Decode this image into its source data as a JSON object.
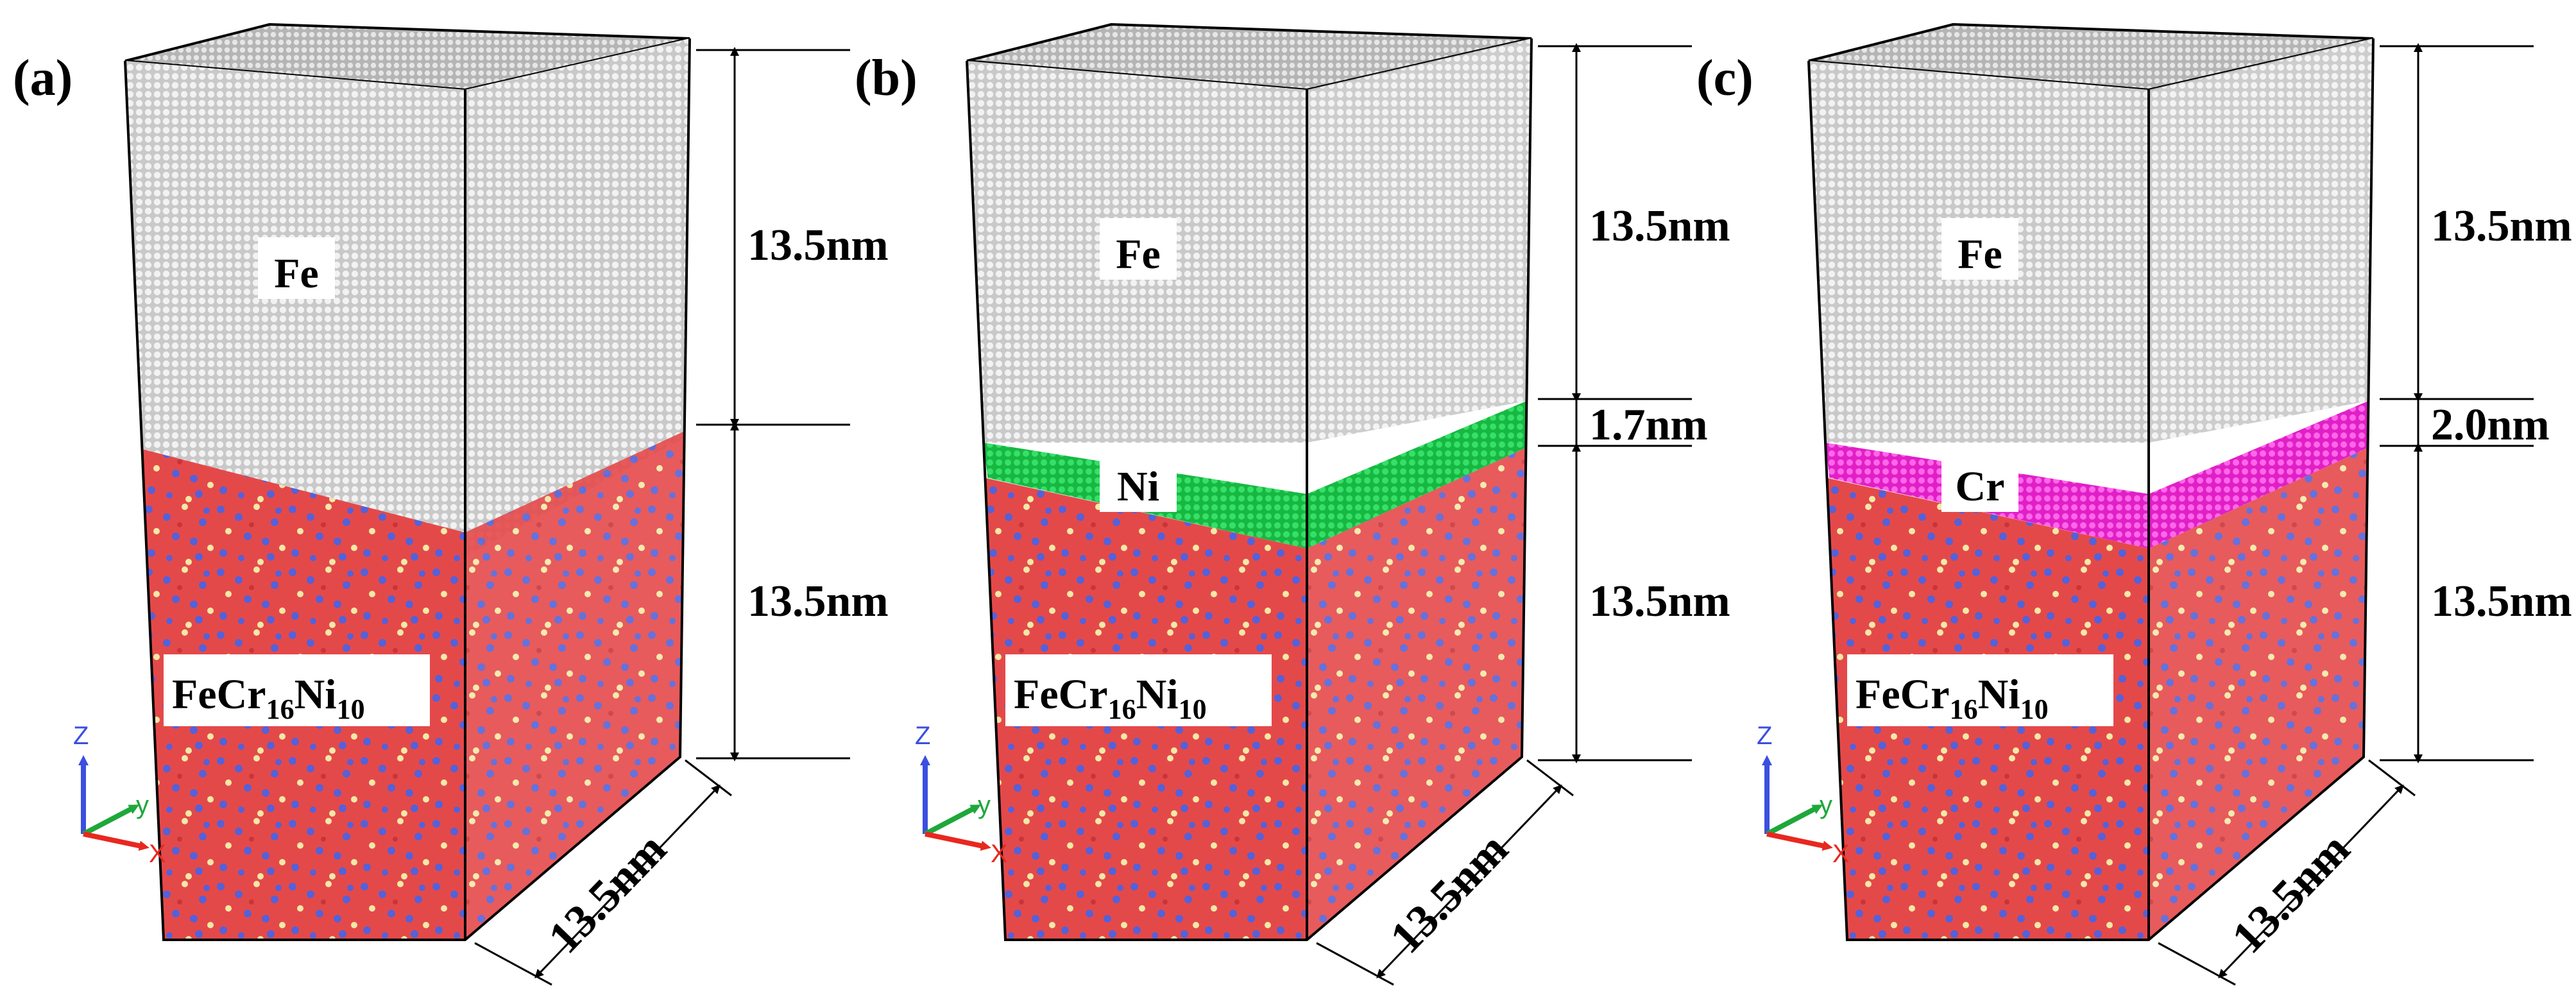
{
  "panels": [
    {
      "letter": "(a)",
      "layers": [
        {
          "name": "Fe",
          "type": "Fe",
          "thickness_label": "13.5nm"
        },
        {
          "name": "FeCr16Ni10",
          "type": "FeCrNi",
          "thickness_label": "13.5nm"
        }
      ],
      "alloy": {
        "base": "FeCr",
        "sub1": "16",
        "mid": "Ni",
        "sub2": "10"
      },
      "width_label": "13.5nm"
    },
    {
      "letter": "(b)",
      "layers": [
        {
          "name": "Fe",
          "type": "Fe",
          "thickness_label": "13.5nm"
        },
        {
          "name": "Ni",
          "type": "Ni",
          "thickness_label": "1.7nm"
        },
        {
          "name": "FeCr16Ni10",
          "type": "FeCrNi",
          "thickness_label": "13.5nm"
        }
      ],
      "alloy": {
        "base": "FeCr",
        "sub1": "16",
        "mid": "Ni",
        "sub2": "10"
      },
      "width_label": "13.5nm"
    },
    {
      "letter": "(c)",
      "layers": [
        {
          "name": "Fe",
          "type": "Fe",
          "thickness_label": "13.5nm"
        },
        {
          "name": "Cr",
          "type": "Cr",
          "thickness_label": "2.0nm"
        },
        {
          "name": "FeCr16Ni10",
          "type": "FeCrNi",
          "thickness_label": "13.5nm"
        }
      ],
      "alloy": {
        "base": "FeCr",
        "sub1": "16",
        "mid": "Ni",
        "sub2": "10"
      },
      "width_label": "13.5nm"
    }
  ],
  "axes": {
    "z": "Z",
    "y": "y",
    "x": "X"
  },
  "colors": {
    "fe_front": "#c8c8c8",
    "fe_side": "#d4d4d4",
    "fe_top": "#bdbdbd",
    "ni_layer": "#1ecf4f",
    "cr_layer": "#ff3bdc",
    "alloy_base": "#e8474a",
    "alloy_blue": "#5561d8",
    "alloy_yellow": "#f3e9a6",
    "axis_z": "#3b4fe0",
    "axis_y": "#1ea83a",
    "axis_x": "#e8281f"
  }
}
